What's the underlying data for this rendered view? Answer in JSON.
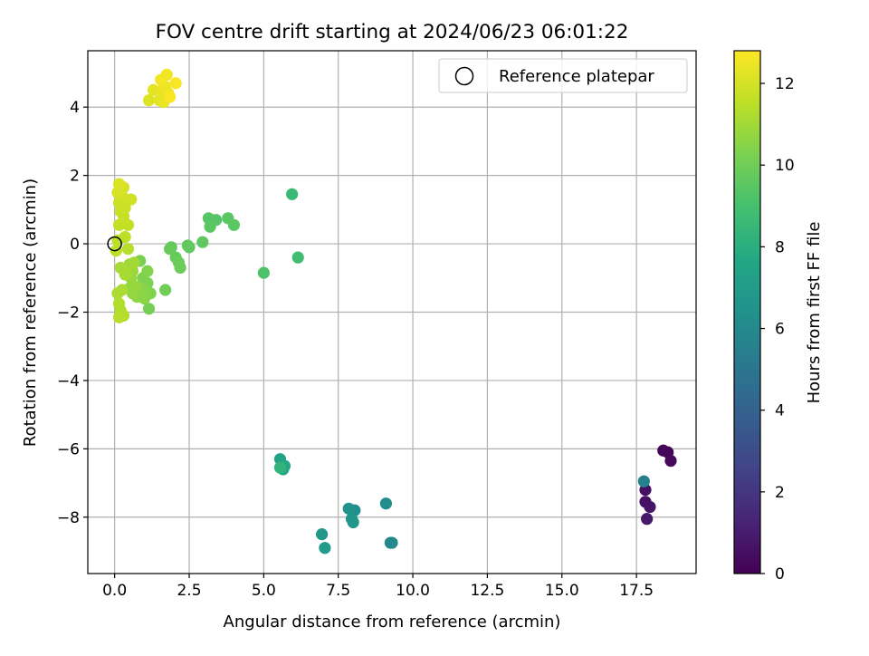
{
  "chart_data": {
    "type": "scatter",
    "title": "FOV centre drift starting at 2024/06/23 06:01:22",
    "xlabel": "Angular distance from reference (arcmin)",
    "ylabel": "Rotation from reference (arcmin)",
    "xlim": [
      -0.9,
      19.5
    ],
    "ylim": [
      -9.65,
      5.65
    ],
    "xticks": [
      0.0,
      2.5,
      5.0,
      7.5,
      10.0,
      12.5,
      15.0,
      17.5
    ],
    "xtick_labels": [
      "0.0",
      "2.5",
      "5.0",
      "7.5",
      "10.0",
      "12.5",
      "15.0",
      "17.5"
    ],
    "yticks": [
      -8,
      -6,
      -4,
      -2,
      0,
      2,
      4
    ],
    "ytick_labels": [
      "−8",
      "−6",
      "−4",
      "−2",
      "0",
      "2",
      "4"
    ],
    "grid": true,
    "legend": {
      "position": "top-right",
      "entries": [
        "Reference platepar"
      ]
    },
    "reference_point": {
      "x": 0.0,
      "y": 0.0
    },
    "colorbar": {
      "label": "Hours from first FF file",
      "range": [
        0,
        12.8
      ],
      "ticks": [
        0,
        2,
        4,
        6,
        8,
        10,
        12
      ],
      "tick_labels": [
        "0",
        "2",
        "4",
        "6",
        "8",
        "10",
        "12"
      ],
      "colormap": "viridis"
    },
    "points": [
      {
        "x": 18.4,
        "y": -6.05,
        "c": 0.1
      },
      {
        "x": 18.55,
        "y": -6.1,
        "c": 0.2
      },
      {
        "x": 18.65,
        "y": -6.35,
        "c": 0.3
      },
      {
        "x": 17.8,
        "y": -7.2,
        "c": 0.5
      },
      {
        "x": 17.8,
        "y": -7.55,
        "c": 0.6
      },
      {
        "x": 17.95,
        "y": -7.7,
        "c": 0.7
      },
      {
        "x": 17.85,
        "y": -8.05,
        "c": 0.8
      },
      {
        "x": 17.75,
        "y": -6.95,
        "c": 5.6
      },
      {
        "x": 9.25,
        "y": -8.75,
        "c": 5.9
      },
      {
        "x": 9.3,
        "y": -8.75,
        "c": 6.0
      },
      {
        "x": 9.1,
        "y": -7.6,
        "c": 6.2
      },
      {
        "x": 8.05,
        "y": -7.8,
        "c": 6.3
      },
      {
        "x": 7.85,
        "y": -7.75,
        "c": 6.5
      },
      {
        "x": 7.95,
        "y": -8.05,
        "c": 6.6
      },
      {
        "x": 8.0,
        "y": -8.15,
        "c": 6.7
      },
      {
        "x": 6.95,
        "y": -8.5,
        "c": 6.8
      },
      {
        "x": 7.05,
        "y": -8.9,
        "c": 6.9
      },
      {
        "x": 5.55,
        "y": -6.3,
        "c": 7.4
      },
      {
        "x": 5.6,
        "y": -6.55,
        "c": 7.5
      },
      {
        "x": 5.7,
        "y": -6.5,
        "c": 7.6
      },
      {
        "x": 5.65,
        "y": -6.6,
        "c": 7.7
      },
      {
        "x": 5.55,
        "y": -6.55,
        "c": 8.3
      },
      {
        "x": 5.95,
        "y": 1.45,
        "c": 8.6
      },
      {
        "x": 6.15,
        "y": -0.4,
        "c": 8.8
      },
      {
        "x": 5.0,
        "y": -0.85,
        "c": 9.2
      },
      {
        "x": 3.15,
        "y": 0.75,
        "c": 9.4
      },
      {
        "x": 3.4,
        "y": 0.7,
        "c": 9.4
      },
      {
        "x": 3.8,
        "y": 0.75,
        "c": 9.5
      },
      {
        "x": 4.0,
        "y": 0.55,
        "c": 9.5
      },
      {
        "x": 3.2,
        "y": 0.5,
        "c": 9.5
      },
      {
        "x": 2.95,
        "y": 0.05,
        "c": 9.6
      },
      {
        "x": 2.5,
        "y": -0.1,
        "c": 9.6
      },
      {
        "x": 2.45,
        "y": -0.05,
        "c": 9.7
      },
      {
        "x": 1.9,
        "y": -0.1,
        "c": 9.7
      },
      {
        "x": 1.85,
        "y": -0.15,
        "c": 9.8
      },
      {
        "x": 2.05,
        "y": -0.4,
        "c": 9.8
      },
      {
        "x": 2.15,
        "y": -0.55,
        "c": 9.9
      },
      {
        "x": 2.2,
        "y": -0.7,
        "c": 9.9
      },
      {
        "x": 1.7,
        "y": -1.35,
        "c": 10.0
      },
      {
        "x": 1.15,
        "y": -1.9,
        "c": 10.1
      },
      {
        "x": 0.85,
        "y": -0.5,
        "c": 10.2
      },
      {
        "x": 0.95,
        "y": -1.0,
        "c": 10.3
      },
      {
        "x": 1.1,
        "y": -1.15,
        "c": 10.3
      },
      {
        "x": 1.2,
        "y": -1.45,
        "c": 10.4
      },
      {
        "x": 1.1,
        "y": -0.8,
        "c": 10.4
      },
      {
        "x": 0.95,
        "y": -1.3,
        "c": 10.5
      },
      {
        "x": 1.0,
        "y": -1.6,
        "c": 10.5
      },
      {
        "x": 0.85,
        "y": -1.5,
        "c": 10.6
      },
      {
        "x": 0.75,
        "y": -1.55,
        "c": 10.6
      },
      {
        "x": 0.6,
        "y": -1.45,
        "c": 10.7
      },
      {
        "x": 0.5,
        "y": -1.3,
        "c": 10.7
      },
      {
        "x": 0.7,
        "y": -1.25,
        "c": 10.8
      },
      {
        "x": 0.55,
        "y": -1.0,
        "c": 10.8
      },
      {
        "x": 0.6,
        "y": -0.8,
        "c": 10.9
      },
      {
        "x": 0.5,
        "y": -0.6,
        "c": 10.9
      },
      {
        "x": 0.65,
        "y": -0.55,
        "c": 11.0
      },
      {
        "x": 0.4,
        "y": -0.75,
        "c": 11.0
      },
      {
        "x": 0.35,
        "y": -0.9,
        "c": 11.1
      },
      {
        "x": 0.2,
        "y": -0.7,
        "c": 11.1
      },
      {
        "x": 0.25,
        "y": -1.35,
        "c": 11.2
      },
      {
        "x": 0.1,
        "y": -1.45,
        "c": 11.2
      },
      {
        "x": 0.15,
        "y": -1.75,
        "c": 11.3
      },
      {
        "x": 0.2,
        "y": -1.95,
        "c": 11.3
      },
      {
        "x": 0.3,
        "y": -2.1,
        "c": 11.3
      },
      {
        "x": 0.15,
        "y": -2.15,
        "c": 11.4
      },
      {
        "x": 0.45,
        "y": -0.15,
        "c": 11.4
      },
      {
        "x": 0.35,
        "y": 0.2,
        "c": 11.5
      },
      {
        "x": 0.1,
        "y": 0.1,
        "c": 11.5
      },
      {
        "x": 0.05,
        "y": -0.2,
        "c": 11.5
      },
      {
        "x": 0.15,
        "y": 0.55,
        "c": 11.6
      },
      {
        "x": 0.45,
        "y": 0.55,
        "c": 11.6
      },
      {
        "x": 0.3,
        "y": 0.8,
        "c": 11.7
      },
      {
        "x": 0.2,
        "y": 0.95,
        "c": 11.7
      },
      {
        "x": 0.35,
        "y": 1.05,
        "c": 11.8
      },
      {
        "x": 0.15,
        "y": 1.2,
        "c": 11.8
      },
      {
        "x": 0.55,
        "y": 1.3,
        "c": 11.9
      },
      {
        "x": 0.25,
        "y": 1.4,
        "c": 11.9
      },
      {
        "x": 0.1,
        "y": 1.5,
        "c": 12.0
      },
      {
        "x": 0.3,
        "y": 1.65,
        "c": 12.0
      },
      {
        "x": 0.15,
        "y": 1.75,
        "c": 12.1
      },
      {
        "x": 1.15,
        "y": 4.2,
        "c": 12.2
      },
      {
        "x": 1.3,
        "y": 4.5,
        "c": 12.3
      },
      {
        "x": 1.5,
        "y": 4.2,
        "c": 12.3
      },
      {
        "x": 1.65,
        "y": 4.15,
        "c": 12.4
      },
      {
        "x": 1.6,
        "y": 4.5,
        "c": 12.4
      },
      {
        "x": 1.8,
        "y": 4.4,
        "c": 12.5
      },
      {
        "x": 1.7,
        "y": 4.6,
        "c": 12.5
      },
      {
        "x": 1.55,
        "y": 4.8,
        "c": 12.6
      },
      {
        "x": 1.75,
        "y": 4.95,
        "c": 12.6
      },
      {
        "x": 2.05,
        "y": 4.7,
        "c": 12.7
      },
      {
        "x": 1.85,
        "y": 4.3,
        "c": 12.7
      }
    ]
  }
}
